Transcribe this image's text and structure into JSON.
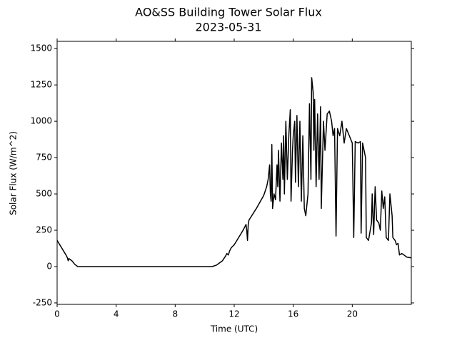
{
  "chart_data": {
    "type": "line",
    "title": "AO&SS Building Tower Solar Flux",
    "subtitle": "2023-05-31",
    "x_label": "Time (UTC)",
    "y_label": "Solar Flux (W/m^2)",
    "x": [
      0,
      0.3,
      0.6,
      0.7,
      0.75,
      0.8,
      1.0,
      1.2,
      1.4,
      2,
      4,
      6,
      8,
      10,
      10.5,
      10.8,
      11,
      11.2,
      11.4,
      11.5,
      11.6,
      11.7,
      11.8,
      12,
      12.3,
      12.6,
      12.8,
      12.85,
      12.9,
      12.95,
      13.0,
      13.5,
      14.0,
      14.2,
      14.3,
      14.4,
      14.45,
      14.5,
      14.55,
      14.6,
      14.7,
      14.8,
      14.9,
      14.95,
      15.0,
      15.1,
      15.2,
      15.3,
      15.35,
      15.4,
      15.5,
      15.6,
      15.7,
      15.8,
      15.85,
      15.95,
      16.0,
      16.1,
      16.15,
      16.25,
      16.35,
      16.45,
      16.55,
      16.65,
      16.75,
      16.85,
      17.0,
      17.1,
      17.2,
      17.25,
      17.35,
      17.4,
      17.45,
      17.55,
      17.65,
      17.75,
      17.85,
      17.9,
      18.05,
      18.15,
      18.3,
      18.45,
      18.6,
      18.7,
      18.8,
      18.9,
      19.0,
      19.15,
      19.3,
      19.45,
      19.6,
      19.8,
      20.0,
      20.1,
      20.2,
      20.4,
      20.55,
      20.6,
      20.7,
      20.9,
      20.95,
      21.1,
      21.3,
      21.35,
      21.45,
      21.55,
      21.65,
      21.8,
      21.9,
      22.0,
      22.1,
      22.2,
      22.3,
      22.45,
      22.55,
      22.7,
      22.75,
      22.9,
      23.0,
      23.1,
      23.2,
      23.35,
      23.5,
      23.7,
      24
    ],
    "series": [
      {
        "name": "Solar Flux",
        "color": "#000000",
        "values": [
          180,
          130,
          80,
          60,
          40,
          55,
          40,
          15,
          0,
          0,
          0,
          0,
          0,
          0,
          0,
          10,
          25,
          40,
          70,
          90,
          80,
          110,
          130,
          150,
          200,
          250,
          290,
          250,
          180,
          290,
          320,
          400,
          490,
          550,
          600,
          700,
          500,
          450,
          840,
          400,
          500,
          460,
          700,
          550,
          800,
          450,
          850,
          600,
          900,
          500,
          1000,
          600,
          900,
          1080,
          450,
          800,
          900,
          1000,
          580,
          1040,
          550,
          1000,
          450,
          900,
          400,
          350,
          500,
          1120,
          600,
          1300,
          1200,
          800,
          1150,
          550,
          1050,
          600,
          1100,
          400,
          1000,
          800,
          1050,
          1070,
          1000,
          900,
          950,
          210,
          950,
          900,
          1000,
          850,
          950,
          900,
          850,
          200,
          860,
          850,
          860,
          230,
          850,
          750,
          200,
          180,
          300,
          500,
          220,
          550,
          320,
          300,
          250,
          520,
          400,
          480,
          200,
          180,
          500,
          350,
          200,
          180,
          150,
          160,
          80,
          90,
          80,
          65,
          60
        ]
      }
    ],
    "xlim": [
      0,
      24
    ],
    "ylim": [
      -260,
      1550
    ],
    "xticks": [
      0,
      4,
      8,
      12,
      16,
      20
    ],
    "yticks": [
      -250,
      0,
      250,
      500,
      750,
      1000,
      1250,
      1500
    ]
  }
}
